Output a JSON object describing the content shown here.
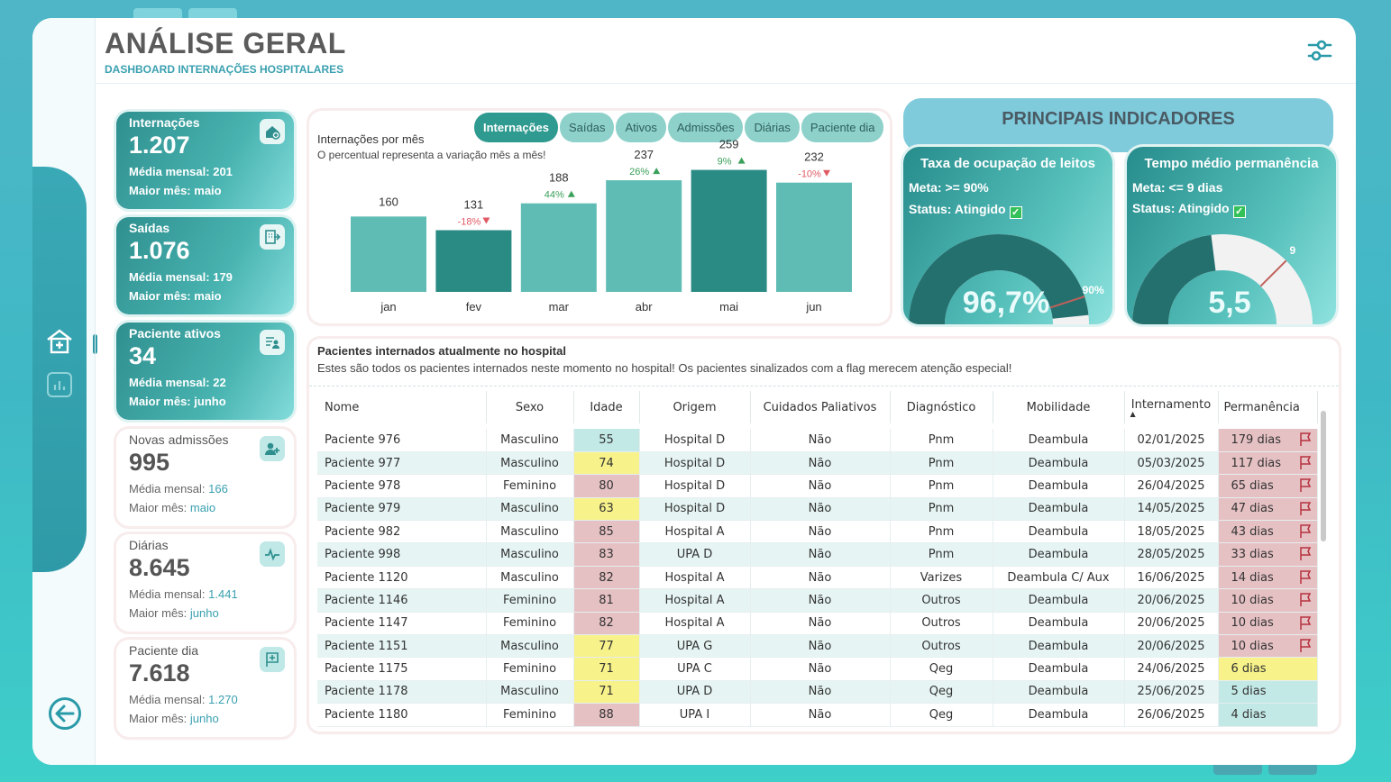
{
  "header": {
    "title": "ANÁLISE GERAL",
    "subtitle": "DASHBOARD INTERNAÇÕES HOSPITALARES"
  },
  "nav": {
    "icons": [
      "hospital-icon",
      "bar-chart-icon",
      "back-arrow-icon"
    ]
  },
  "kpis": [
    {
      "label": "Internações",
      "value": "1.207",
      "media_label": "Média mensal:",
      "media": "201",
      "maior_label": "Maior mês:",
      "maior": "maio",
      "icon": "house-plus-icon",
      "style": "teal"
    },
    {
      "label": "Saídas",
      "value": "1.076",
      "media_label": "Média mensal:",
      "media": "179",
      "maior_label": "Maior mês:",
      "maior": "maio",
      "icon": "exit-building-icon",
      "style": "teal"
    },
    {
      "label": "Paciente ativos",
      "value": "34",
      "media_label": "Média mensal:",
      "media": "22",
      "maior_label": "Maior mês:",
      "maior": "junho",
      "icon": "patient-list-icon",
      "style": "teal"
    },
    {
      "label": "Novas admissões",
      "value": "995",
      "media_label": "Média mensal:",
      "media": "166",
      "maior_label": "Maior mês:",
      "maior": "maio",
      "icon": "add-user-icon",
      "style": "light"
    },
    {
      "label": "Diárias",
      "value": "8.645",
      "media_label": "Média mensal:",
      "media": "1.441",
      "maior_label": "Maior mês:",
      "maior": "junho",
      "icon": "pulse-icon",
      "style": "light"
    },
    {
      "label": "Paciente dia",
      "value": "7.618",
      "media_label": "Média mensal:",
      "media": "1.270",
      "maior_label": "Maior mês:",
      "maior": "junho",
      "icon": "flag-plus-icon",
      "style": "light"
    }
  ],
  "chart_panel": {
    "title": "Internações por mês",
    "subtitle": "O percentual representa a variação mês a mês!",
    "tabs": [
      "Internações",
      "Saídas",
      "Ativos",
      "Admissões",
      "Diárias",
      "Paciente dia"
    ],
    "active_tab": "Internações"
  },
  "chart_data": {
    "type": "bar",
    "categories": [
      "jan",
      "fev",
      "mar",
      "abr",
      "mai",
      "jun"
    ],
    "values": [
      160,
      131,
      188,
      237,
      259,
      232
    ],
    "variation": [
      "",
      "-18%",
      "44%",
      "26%",
      "9%",
      "-10%"
    ],
    "variation_direction": [
      "",
      "down",
      "up",
      "up",
      "up",
      "down"
    ],
    "highlight": [
      "fev",
      "mai"
    ],
    "colors": {
      "bar": "#5fbcb4",
      "highlight": "#2a8a84",
      "up": "#3aa05a",
      "down": "#e05a64"
    }
  },
  "indicators": {
    "title": "PRINCIPAIS INDICADORES",
    "cards": [
      {
        "title": "Taxa de ocupação de leitos",
        "meta_label": "Meta:",
        "meta": ">= 90%",
        "status_label": "Status:",
        "status": "Atingido",
        "value": "96,7%",
        "target_label": "90%",
        "fill_fraction": 0.967,
        "target_fraction": 0.9
      },
      {
        "title": "Tempo médio permanência",
        "meta_label": "Meta:",
        "meta": "<= 9 dias",
        "status_label": "Status:",
        "status": "Atingido",
        "value": "5,5",
        "target_label": "9",
        "fill_fraction": 0.46,
        "target_fraction": 0.75
      }
    ]
  },
  "table": {
    "title": "Pacientes internados atualmente no hospital",
    "subtitle": "Estes são todos os pacientes internados neste momento no hospital! Os pacientes sinalizados com a flag merecem atenção especial!",
    "columns": [
      "Nome",
      "Sexo",
      "Idade",
      "Origem",
      "Cuidados Paliativos",
      "Diagnóstico",
      "Mobilidade",
      "Internamento",
      "Permanência"
    ],
    "rows": [
      {
        "nome": "Paciente 976",
        "sexo": "Masculino",
        "idade": "55",
        "origem": "Hospital D",
        "cp": "Não",
        "diag": "Pnm",
        "mob": "Deambula",
        "intern": "02/01/2025",
        "perm": "179 dias",
        "age_color": "teal",
        "perm_color": "red",
        "flag": true
      },
      {
        "nome": "Paciente 977",
        "sexo": "Masculino",
        "idade": "74",
        "origem": "Hospital D",
        "cp": "Não",
        "diag": "Pnm",
        "mob": "Deambula",
        "intern": "05/03/2025",
        "perm": "117 dias",
        "age_color": "yellow",
        "perm_color": "red",
        "flag": true
      },
      {
        "nome": "Paciente 978",
        "sexo": "Feminino",
        "idade": "80",
        "origem": "Hospital D",
        "cp": "Não",
        "diag": "Pnm",
        "mob": "Deambula",
        "intern": "26/04/2025",
        "perm": "65 dias",
        "age_color": "red",
        "perm_color": "red",
        "flag": true
      },
      {
        "nome": "Paciente 979",
        "sexo": "Masculino",
        "idade": "63",
        "origem": "Hospital D",
        "cp": "Não",
        "diag": "Pnm",
        "mob": "Deambula",
        "intern": "14/05/2025",
        "perm": "47 dias",
        "age_color": "yellow",
        "perm_color": "red",
        "flag": true
      },
      {
        "nome": "Paciente 982",
        "sexo": "Masculino",
        "idade": "85",
        "origem": "Hospital A",
        "cp": "Não",
        "diag": "Pnm",
        "mob": "Deambula",
        "intern": "18/05/2025",
        "perm": "43 dias",
        "age_color": "red",
        "perm_color": "red",
        "flag": true
      },
      {
        "nome": "Paciente 998",
        "sexo": "Masculino",
        "idade": "83",
        "origem": "UPA D",
        "cp": "Não",
        "diag": "Pnm",
        "mob": "Deambula",
        "intern": "28/05/2025",
        "perm": "33 dias",
        "age_color": "red",
        "perm_color": "red",
        "flag": true
      },
      {
        "nome": "Paciente 1120",
        "sexo": "Masculino",
        "idade": "82",
        "origem": "Hospital A",
        "cp": "Não",
        "diag": "Varizes",
        "mob": "Deambula C/ Aux",
        "intern": "16/06/2025",
        "perm": "14 dias",
        "age_color": "red",
        "perm_color": "red",
        "flag": true
      },
      {
        "nome": "Paciente 1146",
        "sexo": "Feminino",
        "idade": "81",
        "origem": "Hospital A",
        "cp": "Não",
        "diag": "Outros",
        "mob": "Deambula",
        "intern": "20/06/2025",
        "perm": "10 dias",
        "age_color": "red",
        "perm_color": "red",
        "flag": true
      },
      {
        "nome": "Paciente 1147",
        "sexo": "Feminino",
        "idade": "82",
        "origem": "Hospital A",
        "cp": "Não",
        "diag": "Outros",
        "mob": "Deambula",
        "intern": "20/06/2025",
        "perm": "10 dias",
        "age_color": "red",
        "perm_color": "red",
        "flag": true
      },
      {
        "nome": "Paciente 1151",
        "sexo": "Masculino",
        "idade": "77",
        "origem": "UPA G",
        "cp": "Não",
        "diag": "Outros",
        "mob": "Deambula",
        "intern": "20/06/2025",
        "perm": "10 dias",
        "age_color": "yellow",
        "perm_color": "red",
        "flag": true
      },
      {
        "nome": "Paciente 1175",
        "sexo": "Feminino",
        "idade": "71",
        "origem": "UPA C",
        "cp": "Não",
        "diag": "Qeg",
        "mob": "Deambula",
        "intern": "24/06/2025",
        "perm": "6 dias",
        "age_color": "yellow",
        "perm_color": "yellow",
        "flag": false
      },
      {
        "nome": "Paciente 1178",
        "sexo": "Masculino",
        "idade": "71",
        "origem": "UPA D",
        "cp": "Não",
        "diag": "Qeg",
        "mob": "Deambula",
        "intern": "25/06/2025",
        "perm": "5 dias",
        "age_color": "yellow",
        "perm_color": "teal",
        "flag": false
      },
      {
        "nome": "Paciente 1180",
        "sexo": "Feminino",
        "idade": "88",
        "origem": "UPA I",
        "cp": "Não",
        "diag": "Qeg",
        "mob": "Deambula",
        "intern": "26/06/2025",
        "perm": "4 dias",
        "age_color": "red",
        "perm_color": "teal",
        "flag": false
      }
    ]
  }
}
